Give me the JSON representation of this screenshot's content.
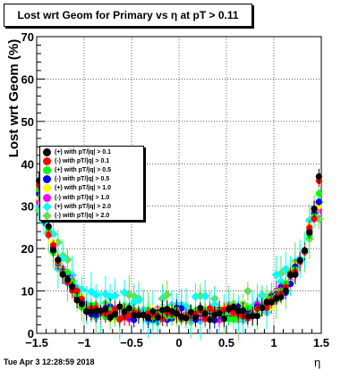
{
  "title": "Lost wrt Geom for Primary vs   η at pT > 0.11",
  "footer": "Tue Apr  3 12:28:59 2018",
  "chart_data": {
    "type": "scatter",
    "xlabel": "η",
    "ylabel": "Lost wrt Geom (%)",
    "xlim": [
      -1.5,
      1.5
    ],
    "ylim": [
      0,
      70
    ],
    "x_ticks": [
      "−1.5",
      "−1",
      "−0.5",
      "0",
      "0.5",
      "1",
      "1.5"
    ],
    "y_ticks": [
      "0",
      "10",
      "20",
      "30",
      "40",
      "50",
      "60",
      "70"
    ],
    "grid": true,
    "legend_position": "middle-left",
    "series": [
      {
        "name": "(+) with pT/|q| > 0.1",
        "color": "#000000",
        "shape": "circle",
        "ends": [
          36,
          37
        ]
      },
      {
        "name": "(-) with pT/|q| > 0.1",
        "color": "#ff0000",
        "shape": "circle",
        "ends": [
          35,
          36
        ]
      },
      {
        "name": "(+) with pT/|q| > 0.5",
        "color": "#00ff00",
        "shape": "circle",
        "ends": [
          34,
          33
        ]
      },
      {
        "name": "(-) with pT/|q| > 0.5",
        "color": "#0000ff",
        "shape": "circle",
        "ends": [
          33,
          31
        ]
      },
      {
        "name": "(+) with pT/|q| > 1.0",
        "color": "#ffff00",
        "shape": "circle",
        "ends": [
          32,
          30
        ]
      },
      {
        "name": "(-) with pT/|q| > 1.0",
        "color": "#ff00ff",
        "shape": "circle",
        "ends": [
          31,
          29
        ]
      },
      {
        "name": "(+) with pT/|q| > 2.0",
        "color": "#00ffff",
        "shape": "diamond",
        "ends": [
          30,
          31
        ]
      },
      {
        "name": "(-) with pT/|q| > 2.0",
        "color": "#66dd55",
        "shape": "diamond",
        "ends": [
          29,
          27
        ]
      }
    ],
    "x": [
      -1.475,
      -1.425,
      -1.375,
      -1.325,
      -1.275,
      -1.225,
      -1.175,
      -1.125,
      -1.075,
      -1.025,
      -0.975,
      -0.925,
      -0.875,
      -0.825,
      -0.775,
      -0.725,
      -0.675,
      -0.625,
      -0.575,
      -0.525,
      -0.475,
      -0.425,
      -0.375,
      -0.325,
      -0.275,
      -0.225,
      -0.175,
      -0.125,
      -0.075,
      -0.025,
      0.025,
      0.075,
      0.125,
      0.175,
      0.225,
      0.275,
      0.325,
      0.375,
      0.425,
      0.475,
      0.525,
      0.575,
      0.625,
      0.675,
      0.725,
      0.775,
      0.825,
      0.875,
      0.925,
      0.975,
      1.025,
      1.075,
      1.125,
      1.175,
      1.225,
      1.275,
      1.325,
      1.375,
      1.425,
      1.475
    ],
    "base_curve": [
      34,
      28,
      24,
      20,
      17,
      15,
      13,
      11,
      9,
      7.5,
      6.5,
      6,
      5.5,
      5.2,
      5,
      5,
      4.8,
      4.8,
      4.7,
      4.7,
      4.6,
      4.6,
      4.6,
      4.6,
      4.6,
      4.6,
      4.6,
      4.6,
      4.6,
      4.6,
      4.6,
      4.6,
      4.6,
      4.6,
      4.6,
      4.6,
      4.6,
      4.6,
      4.6,
      4.7,
      4.7,
      4.8,
      4.8,
      5,
      5,
      5.2,
      5.5,
      6,
      6.5,
      7.5,
      9,
      10,
      11,
      13,
      15,
      17,
      20,
      24,
      28,
      34
    ]
  }
}
